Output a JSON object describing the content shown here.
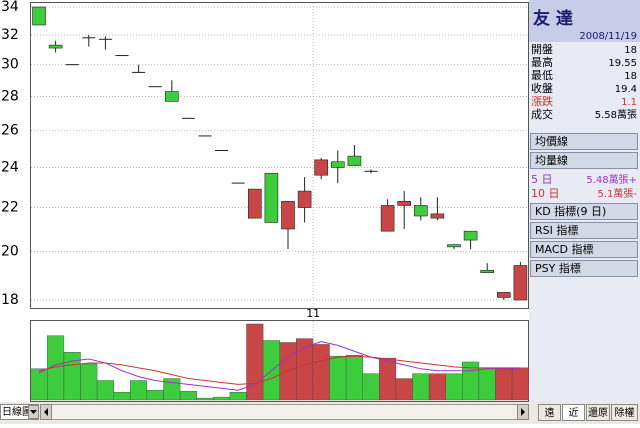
{
  "chart_data": {
    "type": "candlestick",
    "log_scale": true,
    "grid": true,
    "ylim": [
      18,
      34
    ],
    "yticks": [
      18,
      20,
      22,
      24,
      26,
      28,
      30,
      32,
      34
    ],
    "categories": [
      null,
      null,
      null,
      null,
      null,
      null,
      null,
      null,
      null,
      null,
      null,
      null,
      null,
      null,
      null,
      null,
      null,
      "11",
      null,
      null,
      null,
      null,
      null,
      null,
      null,
      null,
      null,
      null,
      null,
      null
    ],
    "up_color": "#c84646",
    "down_color": "#3ccc3c",
    "flat_color": "#202020",
    "open": [
      34,
      31.3,
      30,
      31.8,
      31.7,
      30.6,
      29.5,
      28.6,
      28.3,
      26.7,
      25.7,
      24.9,
      23.2,
      21.5,
      23.7,
      21,
      22,
      23.6,
      24.3,
      24.6,
      23.8,
      20.9,
      22.1,
      22.1,
      21.5,
      20.3,
      20.9,
      19.2,
      18.1,
      18
    ],
    "high": [
      34,
      31.6,
      30,
      32,
      31.9,
      30.6,
      30,
      28.6,
      29,
      26.7,
      25.7,
      24.9,
      23.2,
      22.9,
      23.7,
      22.3,
      23.5,
      24.5,
      24.9,
      25.2,
      23.9,
      22.4,
      22.8,
      22.5,
      22.5,
      20.3,
      20.9,
      19.5,
      18.3,
      19.55
    ],
    "low": [
      32.7,
      30.8,
      30,
      31.2,
      31,
      30.6,
      29.5,
      28.6,
      27.7,
      26.7,
      25.7,
      24.9,
      23.2,
      21.5,
      21.3,
      20.1,
      21.3,
      23.4,
      23.2,
      24.1,
      23.7,
      20.9,
      21,
      21.4,
      21.4,
      20.1,
      20.1,
      19.1,
      18,
      18
    ],
    "close": [
      32.7,
      31.1,
      30,
      31.8,
      31.7,
      30.6,
      29.5,
      28.6,
      27.7,
      26.7,
      25.7,
      24.9,
      23.2,
      22.9,
      21.3,
      22.3,
      22.8,
      24.4,
      24,
      24.1,
      23.8,
      22.1,
      22.3,
      21.6,
      21.7,
      20.2,
      20.5,
      19.1,
      18.3,
      19.4
    ],
    "volume": {
      "vlim": [
        0,
        80
      ],
      "values": [
        32,
        66,
        49,
        37,
        20,
        8,
        20,
        10,
        22,
        9,
        2,
        3,
        8,
        78,
        61,
        59,
        63,
        57,
        45,
        46,
        27,
        43,
        22,
        27,
        27,
        27,
        39,
        33,
        33,
        33
      ],
      "ma": [
        {
          "color": "#9933cc",
          "values": [
            28,
            36,
            40,
            42,
            38,
            30,
            24,
            20,
            18,
            16,
            14,
            12,
            10,
            16,
            30,
            44,
            54,
            60,
            56,
            50,
            44,
            40,
            36,
            32,
            30,
            30,
            30,
            32,
            32,
            32
          ]
        },
        {
          "color": "#cc3333",
          "values": [
            30,
            34,
            36,
            38,
            38,
            36,
            33,
            30,
            26,
            22,
            20,
            18,
            16,
            17,
            22,
            30,
            36,
            40,
            44,
            45,
            44,
            42,
            40,
            38,
            36,
            34,
            33,
            33,
            33,
            33
          ]
        }
      ]
    }
  },
  "panel": {
    "name": "友 達",
    "date": "2008/11/19",
    "rows": [
      [
        "開盤",
        "18"
      ],
      [
        "最高",
        "19.55"
      ],
      [
        "最低",
        "18"
      ],
      [
        "收盤",
        "19.4"
      ],
      [
        "漲跌",
        "1.1"
      ],
      [
        "成交",
        "5.58萬張"
      ]
    ],
    "buttons": [
      "均價線",
      "均量線"
    ],
    "ma_rows": [
      [
        "5 日",
        "5.48萬張+"
      ],
      [
        "10 日",
        "5.1萬張-"
      ]
    ],
    "indicators": [
      "KD 指標(9 日)",
      "RSI 指標",
      "MACD 指標",
      "PSY 指標"
    ]
  },
  "bottom": {
    "select": "日線圖",
    "buttons": [
      "遠",
      "近",
      "還原",
      "除權"
    ]
  }
}
